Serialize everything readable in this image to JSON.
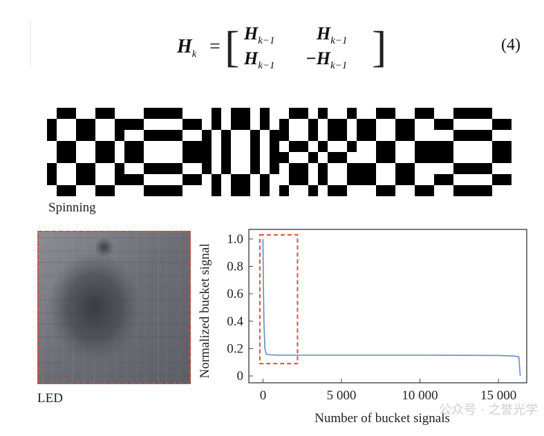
{
  "equation": {
    "lhs_symbol": "H",
    "lhs_sub": "k",
    "equals": "=",
    "matrix": {
      "r0c0": {
        "symbol": "H",
        "sub": "k−1"
      },
      "r0c1": {
        "symbol": "H",
        "sub": "k−1"
      },
      "r1c0": {
        "symbol": "H",
        "sub": "k−1"
      },
      "r1c1": {
        "symbol": "−H",
        "sub": "k−1"
      }
    },
    "number": "(4)"
  },
  "pattern_label": "Spinning",
  "image_label": "LED",
  "colors": {
    "pattern": "#000000",
    "series_line": "#5b8dc9",
    "highlight_box": "#e04a3a",
    "axis": "#444444"
  },
  "chart_data": {
    "type": "line",
    "ylabel": "Normalized bucket signal",
    "xlabel": "Number of bucket signals",
    "xlim": [
      -900,
      16800
    ],
    "ylim": [
      -0.05,
      1.07
    ],
    "x_ticks": [
      0,
      5000,
      10000,
      15000
    ],
    "x_tick_labels": [
      "0",
      "5 000",
      "10 000",
      "15 000"
    ],
    "y_ticks": [
      0,
      0.2,
      0.4,
      0.6,
      0.8,
      1.0
    ],
    "y_tick_labels": [
      "0",
      "0.2",
      "0.4",
      "0.6",
      "0.8",
      "1.0"
    ],
    "series": [
      {
        "x": [
          0,
          20,
          60,
          120,
          200,
          400,
          1000,
          5000,
          10000,
          15000,
          16000,
          16300,
          16384
        ],
        "y": [
          1.0,
          0.75,
          0.4,
          0.2,
          0.16,
          0.155,
          0.152,
          0.152,
          0.152,
          0.15,
          0.145,
          0.14,
          0.0
        ]
      }
    ],
    "highlight_region": {
      "x": [
        -200,
        2200
      ],
      "y": [
        0.09,
        1.03
      ]
    },
    "grid": false
  },
  "watermark": "公众号 · 之誉光学"
}
